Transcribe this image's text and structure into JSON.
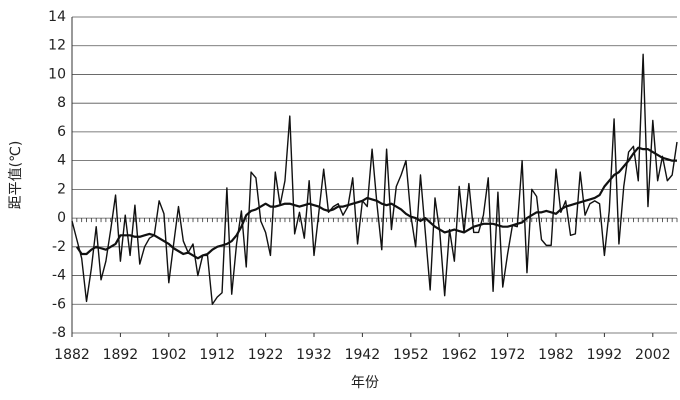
{
  "chart_data": {
    "type": "line",
    "x_label": "年份",
    "y_label": "距平值(℃)",
    "x": [
      1882,
      1883,
      1884,
      1885,
      1886,
      1887,
      1888,
      1889,
      1890,
      1891,
      1892,
      1893,
      1894,
      1895,
      1896,
      1897,
      1898,
      1899,
      1900,
      1901,
      1902,
      1903,
      1904,
      1905,
      1906,
      1907,
      1908,
      1909,
      1910,
      1911,
      1912,
      1913,
      1914,
      1915,
      1916,
      1917,
      1918,
      1919,
      1920,
      1921,
      1922,
      1923,
      1924,
      1925,
      1926,
      1927,
      1928,
      1929,
      1930,
      1931,
      1932,
      1933,
      1934,
      1935,
      1936,
      1937,
      1938,
      1939,
      1940,
      1941,
      1942,
      1943,
      1944,
      1945,
      1946,
      1947,
      1948,
      1949,
      1950,
      1951,
      1952,
      1953,
      1954,
      1955,
      1956,
      1957,
      1958,
      1959,
      1960,
      1961,
      1962,
      1963,
      1964,
      1965,
      1966,
      1967,
      1968,
      1969,
      1970,
      1971,
      1972,
      1973,
      1974,
      1975,
      1976,
      1977,
      1978,
      1979,
      1980,
      1981,
      1982,
      1983,
      1984,
      1985,
      1986,
      1987,
      1988,
      1989,
      1990,
      1991,
      1992,
      1993,
      1994,
      1995,
      1996,
      1997,
      1998,
      1999,
      2000,
      2001,
      2002,
      2003,
      2004,
      2005,
      2006,
      2007
    ],
    "series": [
      {
        "color": "#111111",
        "width": 1.4,
        "values": [
          -0.2,
          -1.5,
          -2.8,
          -5.8,
          -3.5,
          -0.6,
          -4.3,
          -3.0,
          -0.8,
          1.6,
          -3.0,
          0.2,
          -2.6,
          0.9,
          -3.2,
          -2.0,
          -1.4,
          -1.2,
          1.2,
          0.3,
          -4.5,
          -1.8,
          0.8,
          -1.6,
          -2.4,
          -1.8,
          -4.0,
          -2.6,
          -2.6,
          -6.0,
          -5.5,
          -5.2,
          2.1,
          -5.3,
          -1.8,
          0.5,
          -3.4,
          3.2,
          2.8,
          -0.2,
          -1.0,
          -2.6,
          3.2,
          0.9,
          2.6,
          7.1,
          -1.1,
          0.4,
          -1.4,
          2.6,
          -2.6,
          0.4,
          3.4,
          0.4,
          0.8,
          1.0,
          0.2,
          0.8,
          2.8,
          -1.8,
          1.2,
          0.8,
          4.8,
          1.0,
          -2.2,
          4.8,
          -0.8,
          2.2,
          3.0,
          4.0,
          0.2,
          -2.0,
          3.0,
          -1.0,
          -5.0,
          1.4,
          -1.0,
          -5.4,
          -0.8,
          -3.0,
          2.2,
          -1.0,
          2.4,
          -1.0,
          -1.0,
          0.2,
          2.8,
          -5.1,
          1.8,
          -4.8,
          -2.5,
          -0.5,
          -0.6,
          4.0,
          -3.8,
          2.0,
          1.5,
          -1.5,
          -1.9,
          -1.9,
          3.4,
          0.4,
          1.2,
          -1.2,
          -1.1,
          3.2,
          0.2,
          1.0,
          1.2,
          1.0,
          -2.6,
          0.5,
          6.9,
          -1.8,
          2.2,
          4.6,
          5.0,
          2.6,
          11.4,
          0.8,
          6.8,
          2.6,
          4.3,
          2.6,
          3.0,
          5.3
        ]
      },
      {
        "color": "#111111",
        "width": 2.2,
        "values": [
          null,
          -2.0,
          -2.5,
          -2.5,
          -2.2,
          -2.0,
          -2.1,
          -2.2,
          -2.0,
          -1.8,
          -1.2,
          -1.2,
          -1.2,
          -1.3,
          -1.3,
          -1.2,
          -1.1,
          -1.2,
          -1.4,
          -1.6,
          -1.8,
          -2.1,
          -2.3,
          -2.5,
          -2.4,
          -2.6,
          -2.8,
          -2.6,
          -2.5,
          -2.2,
          -2.0,
          -1.9,
          -1.8,
          -1.6,
          -1.2,
          -0.6,
          0.2,
          0.5,
          0.6,
          0.8,
          1.0,
          0.8,
          0.8,
          0.9,
          1.0,
          1.0,
          0.9,
          0.8,
          0.9,
          1.0,
          0.9,
          0.8,
          0.6,
          0.5,
          0.6,
          0.8,
          0.8,
          0.9,
          1.0,
          1.1,
          1.2,
          1.4,
          1.3,
          1.2,
          1.0,
          0.9,
          1.0,
          0.8,
          0.6,
          0.3,
          0.1,
          0.0,
          -0.2,
          0.0,
          -0.3,
          -0.6,
          -0.8,
          -1.0,
          -0.9,
          -0.8,
          -0.9,
          -1.0,
          -0.8,
          -0.6,
          -0.5,
          -0.4,
          -0.4,
          -0.4,
          -0.5,
          -0.6,
          -0.6,
          -0.5,
          -0.4,
          -0.3,
          0.0,
          0.2,
          0.4,
          0.4,
          0.5,
          0.4,
          0.3,
          0.6,
          0.8,
          0.9,
          1.0,
          1.1,
          1.2,
          1.3,
          1.4,
          1.6,
          2.2,
          2.6,
          3.0,
          3.2,
          3.6,
          4.0,
          4.5,
          4.9,
          4.8,
          4.8,
          4.6,
          4.4,
          4.2,
          4.1,
          4.0,
          4.0
        ]
      }
    ],
    "xlim": [
      1882,
      2007
    ],
    "xticks": [
      1882,
      1892,
      1902,
      1912,
      1922,
      1932,
      1942,
      1952,
      1962,
      1972,
      1982,
      1992,
      2002
    ],
    "ylim": [
      -8,
      14
    ],
    "yticks": [
      -8,
      -6,
      -4,
      -2,
      0,
      2,
      4,
      6,
      8,
      10,
      12,
      14
    ],
    "grid": true
  }
}
